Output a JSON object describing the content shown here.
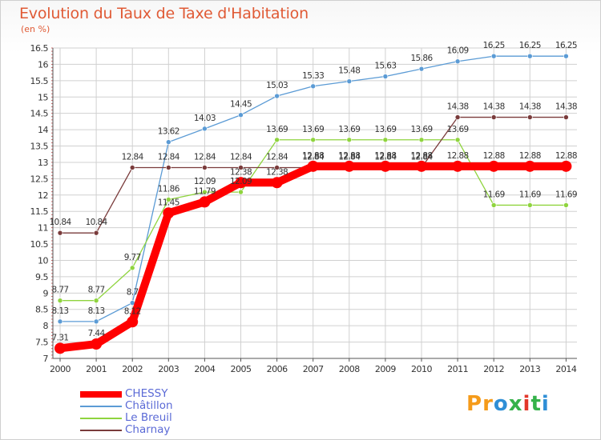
{
  "title": "Evolution du Taux de Taxe d'Habitation",
  "unit_label": "(en %)",
  "logo": {
    "text": "Proxiti",
    "letters": [
      "P",
      "r",
      "o",
      "x",
      "i",
      "t",
      "i"
    ],
    "colors": [
      "#f59b1a",
      "#f59b1a",
      "#2f8fd6",
      "#35b24a",
      "#e2382b",
      "#35b24a",
      "#2f8fd6"
    ]
  },
  "chart_data": {
    "type": "line",
    "title": "Evolution du Taux de Taxe d'Habitation",
    "ylabel": "(en %)",
    "xlabel": "",
    "x": [
      "2000",
      "2001",
      "2002",
      "2003",
      "2004",
      "2005",
      "2006",
      "2007",
      "2008",
      "2009",
      "2010",
      "2011",
      "2012",
      "2013",
      "2014"
    ],
    "ylim": [
      7,
      16.5
    ],
    "yticks": [
      "7",
      "7.5",
      "8",
      "8.5",
      "9",
      "9.5",
      "10",
      "10.5",
      "11",
      "11.5",
      "12",
      "12.5",
      "13",
      "13.5",
      "14",
      "14.5",
      "15",
      "15.5",
      "16",
      "16.5"
    ],
    "grid": true,
    "legend_position": "bottom-left",
    "series": [
      {
        "name": "Châtillon",
        "color": "#5b9bd5",
        "values": [
          8.13,
          8.13,
          8.7,
          13.62,
          14.03,
          14.45,
          15.03,
          15.33,
          15.48,
          15.63,
          15.86,
          16.09,
          16.25,
          16.25,
          16.25
        ],
        "labels": [
          "8.13",
          "8.13",
          "8.7",
          "13.62",
          "14.03",
          "14.45",
          "15.03",
          "15.33",
          "15.48",
          "15.63",
          "15.86",
          "16.09",
          "16.25",
          "16.25",
          "16.25"
        ]
      },
      {
        "name": "Le Breuil",
        "color": "#8fd43e",
        "values": [
          8.77,
          8.77,
          9.77,
          11.86,
          12.09,
          12.09,
          13.69,
          13.69,
          13.69,
          13.69,
          13.69,
          13.69,
          11.69,
          11.69,
          11.69
        ],
        "labels": [
          "8.77",
          "8.77",
          "9.77",
          "11.86",
          "12.09",
          "12.09",
          "13.69",
          "13.69",
          "13.69",
          "13.69",
          "13.69",
          "13.69",
          "11.69",
          "11.69",
          "11.69"
        ]
      },
      {
        "name": "Charnay",
        "color": "#7a3b3b",
        "values": [
          10.84,
          10.84,
          12.84,
          12.84,
          12.84,
          12.84,
          12.84,
          12.84,
          12.84,
          12.84,
          12.84,
          14.38,
          14.38,
          14.38,
          14.38
        ],
        "labels": [
          "10.84",
          "10.84",
          "12.84",
          "12.84",
          "12.84",
          "12.84",
          "12.84",
          "12.84",
          "12.84",
          "12.84",
          "12.84",
          "14.38",
          "14.38",
          "14.38",
          "14.38"
        ]
      },
      {
        "name": "CHESSY",
        "color": "#ff0000",
        "values": [
          7.31,
          7.44,
          8.12,
          11.45,
          11.79,
          12.38,
          12.38,
          12.88,
          12.88,
          12.88,
          12.88,
          12.88,
          12.88,
          12.88,
          12.88
        ],
        "labels": [
          "7.31",
          "7.44",
          "8.12",
          "11.45",
          "11.79",
          "12.38",
          "12.38",
          "12.88",
          "12.88",
          "12.88",
          "12.88",
          "12.88",
          "12.88",
          "12.88",
          "12.88"
        ]
      }
    ]
  },
  "legend": [
    {
      "name": "CHESSY",
      "color": "#ff0000",
      "weight": "thick"
    },
    {
      "name": "Châtillon",
      "color": "#5b9bd5",
      "weight": "thin"
    },
    {
      "name": "Le Breuil",
      "color": "#8fd43e",
      "weight": "thin"
    },
    {
      "name": "Charnay",
      "color": "#7a3b3b",
      "weight": "thin"
    }
  ]
}
